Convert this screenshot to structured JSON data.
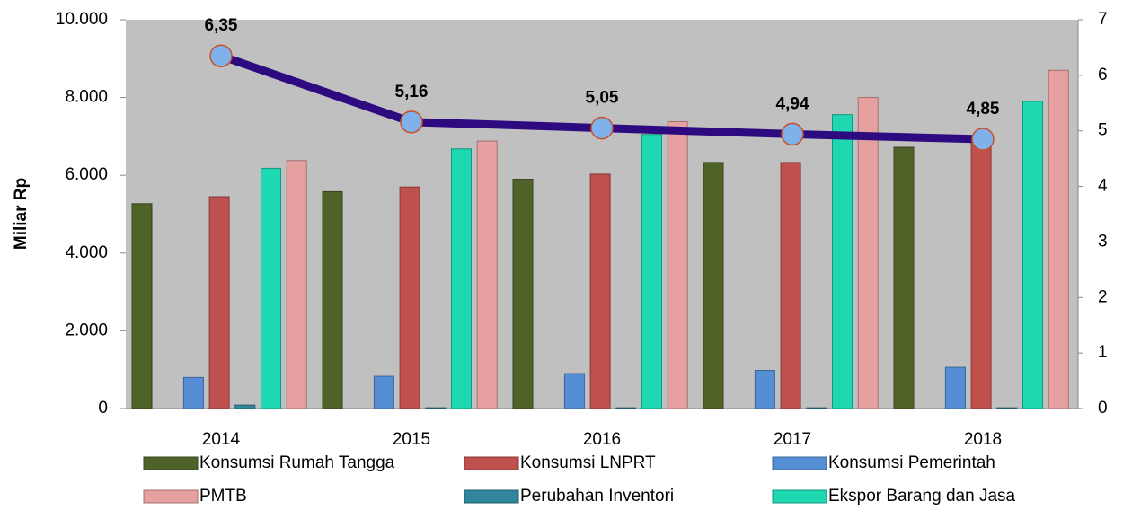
{
  "chart_data": {
    "type": "bar",
    "y_label": "Miliar Rp",
    "categories": [
      "2014",
      "2015",
      "2016",
      "2017",
      "2018"
    ],
    "series": [
      {
        "name": "Konsumsi Rumah Tangga",
        "color": "#4f6228",
        "values": [
          5270,
          5580,
          5900,
          6330,
          6720
        ]
      },
      {
        "name": "Konsumsi LNPRT",
        "color": "#c0504d",
        "values": [
          5450,
          5700,
          6030,
          6330,
          6900
        ]
      },
      {
        "name": "Konsumsi Pemerintah",
        "color": "#558ed5",
        "values": [
          800,
          830,
          900,
          980,
          1060
        ]
      },
      {
        "name": "PMTB",
        "color": "#e6a0a0",
        "values": [
          6380,
          6880,
          7380,
          8000,
          8700
        ]
      },
      {
        "name": "Perubahan Inventori",
        "color": "#31859c",
        "values": [
          90,
          20,
          20,
          20,
          20
        ]
      },
      {
        "name": "Ekspor Barang dan Jasa",
        "color": "#1dd8b0",
        "values": [
          6180,
          6680,
          7050,
          7560,
          7900
        ]
      },
      {
        "type": "line",
        "axis": "y2",
        "color": "#2e0a80",
        "values": [
          6.35,
          5.16,
          5.05,
          4.94,
          4.85
        ],
        "value_labels": [
          "6,35",
          "5,16",
          "5,05",
          "4,94",
          "4,85"
        ]
      }
    ],
    "ylim": [
      0,
      10000
    ],
    "yticks": [
      0,
      {
        "value": 2000,
        "label": "2.000"
      },
      {
        "value": 4000,
        "label": "4.000"
      },
      {
        "value": 6000,
        "label": "6.000"
      },
      {
        "value": 8000,
        "label": "8.000"
      },
      {
        "value": 10000,
        "label": "10.000"
      }
    ],
    "y2lim": [
      0,
      7
    ],
    "y2ticks": [
      0,
      1,
      2,
      3,
      4,
      5,
      6,
      7
    ],
    "plot_background": "#c0c0c0",
    "legend": "bottom"
  }
}
